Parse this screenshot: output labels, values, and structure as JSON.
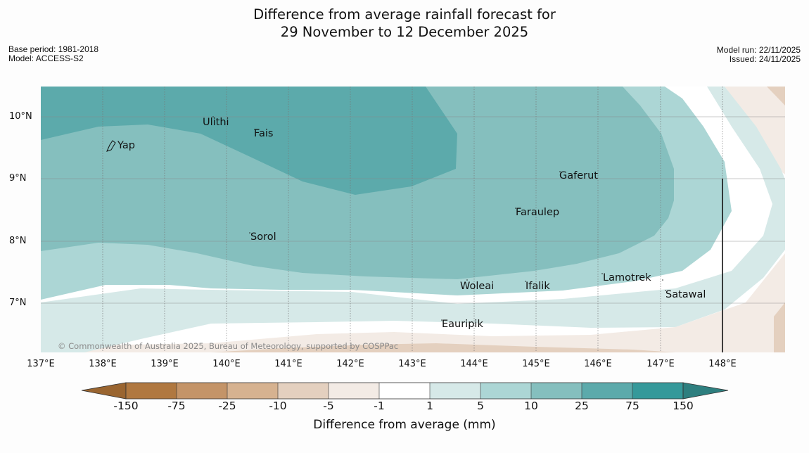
{
  "title": {
    "line1": "Difference from average rainfall forecast for",
    "line2": "29 November to 12 December 2025"
  },
  "meta": {
    "base_period": "Base period: 1981-2018",
    "model": "Model: ACCESS-S2",
    "model_run": "Model run: 22/11/2025",
    "issued": "Issued: 24/11/2025"
  },
  "map": {
    "lon_labels": [
      "137°E",
      "138°E",
      "139°E",
      "140°E",
      "141°E",
      "142°E",
      "143°E",
      "144°E",
      "145°E",
      "146°E",
      "147°E",
      "148°E"
    ],
    "lat_labels": [
      "10°N",
      "9°N",
      "8°N",
      "7°N"
    ],
    "islands": {
      "yap": "Yap",
      "ulithi": "Ulithi",
      "fais": "Fais",
      "gaferut": "Gaferut",
      "faraulep": "Faraulep",
      "sorol": "Sorol",
      "lamotrek": "Lamotrek",
      "woleai": "Woleai",
      "ifalik": "Ifalik",
      "satawal": "Satawal",
      "eauripik": "Eauripik"
    },
    "copyright": "© Commonwealth of Australia 2025, Bureau of Meteorology, supported by COSPPac"
  },
  "colorbar": {
    "ticks": [
      "-150",
      "-75",
      "-25",
      "-10",
      "-5",
      "-1",
      "1",
      "5",
      "10",
      "25",
      "75",
      "150"
    ],
    "colors": [
      "#9a6530",
      "#b07840",
      "#c49468",
      "#d6b290",
      "#e4d0bf",
      "#f3ebe5",
      "#ffffff",
      "#d6e9e8",
      "#acd6d5",
      "#85bfbe",
      "#5caaab",
      "#35999a",
      "#2e7f7f"
    ],
    "label": "Difference from average (mm)"
  }
}
